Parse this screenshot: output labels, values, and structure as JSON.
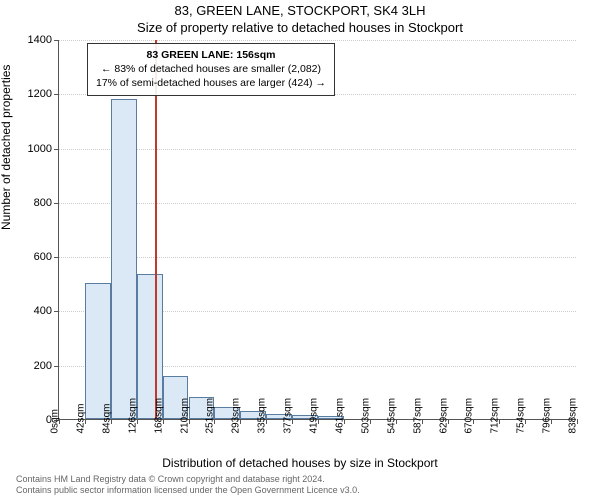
{
  "header": {
    "address": "83, GREEN LANE, STOCKPORT, SK4 3LH",
    "subtitle": "Size of property relative to detached houses in Stockport"
  },
  "chart": {
    "type": "histogram",
    "ylabel": "Number of detached properties",
    "xlabel": "Distribution of detached houses by size in Stockport",
    "ylim": [
      0,
      1400
    ],
    "ytick_step": 200,
    "xtick_labels": [
      "0sqm",
      "42sqm",
      "84sqm",
      "126sqm",
      "168sqm",
      "210sqm",
      "251sqm",
      "293sqm",
      "335sqm",
      "377sqm",
      "419sqm",
      "461sqm",
      "503sqm",
      "545sqm",
      "587sqm",
      "629sqm",
      "670sqm",
      "712sqm",
      "754sqm",
      "796sqm",
      "838sqm"
    ],
    "values": [
      0,
      500,
      1180,
      535,
      160,
      80,
      45,
      30,
      20,
      13,
      10,
      0,
      0,
      0,
      0,
      0,
      0,
      0,
      0,
      0
    ],
    "bar_color": "#dbe9f6",
    "bar_border": "#5a7ca0",
    "background_color": "#ffffff",
    "grid_color": "#cccccc",
    "font_family": "Arial",
    "label_fontsize": 12,
    "tick_fontsize": 11,
    "xtick_fontsize": 10,
    "refline": {
      "x_value": 156,
      "x_max": 838,
      "color": "#c0392b"
    },
    "annotation": {
      "line1": "83 GREEN LANE: 156sqm",
      "line2": "← 83% of detached houses are smaller (2,082)",
      "line3": "17% of semi-detached houses are larger (424) →"
    }
  },
  "footer": {
    "line1": "Contains HM Land Registry data © Crown copyright and database right 2024.",
    "line2": "Contains public sector information licensed under the Open Government Licence v3.0."
  }
}
